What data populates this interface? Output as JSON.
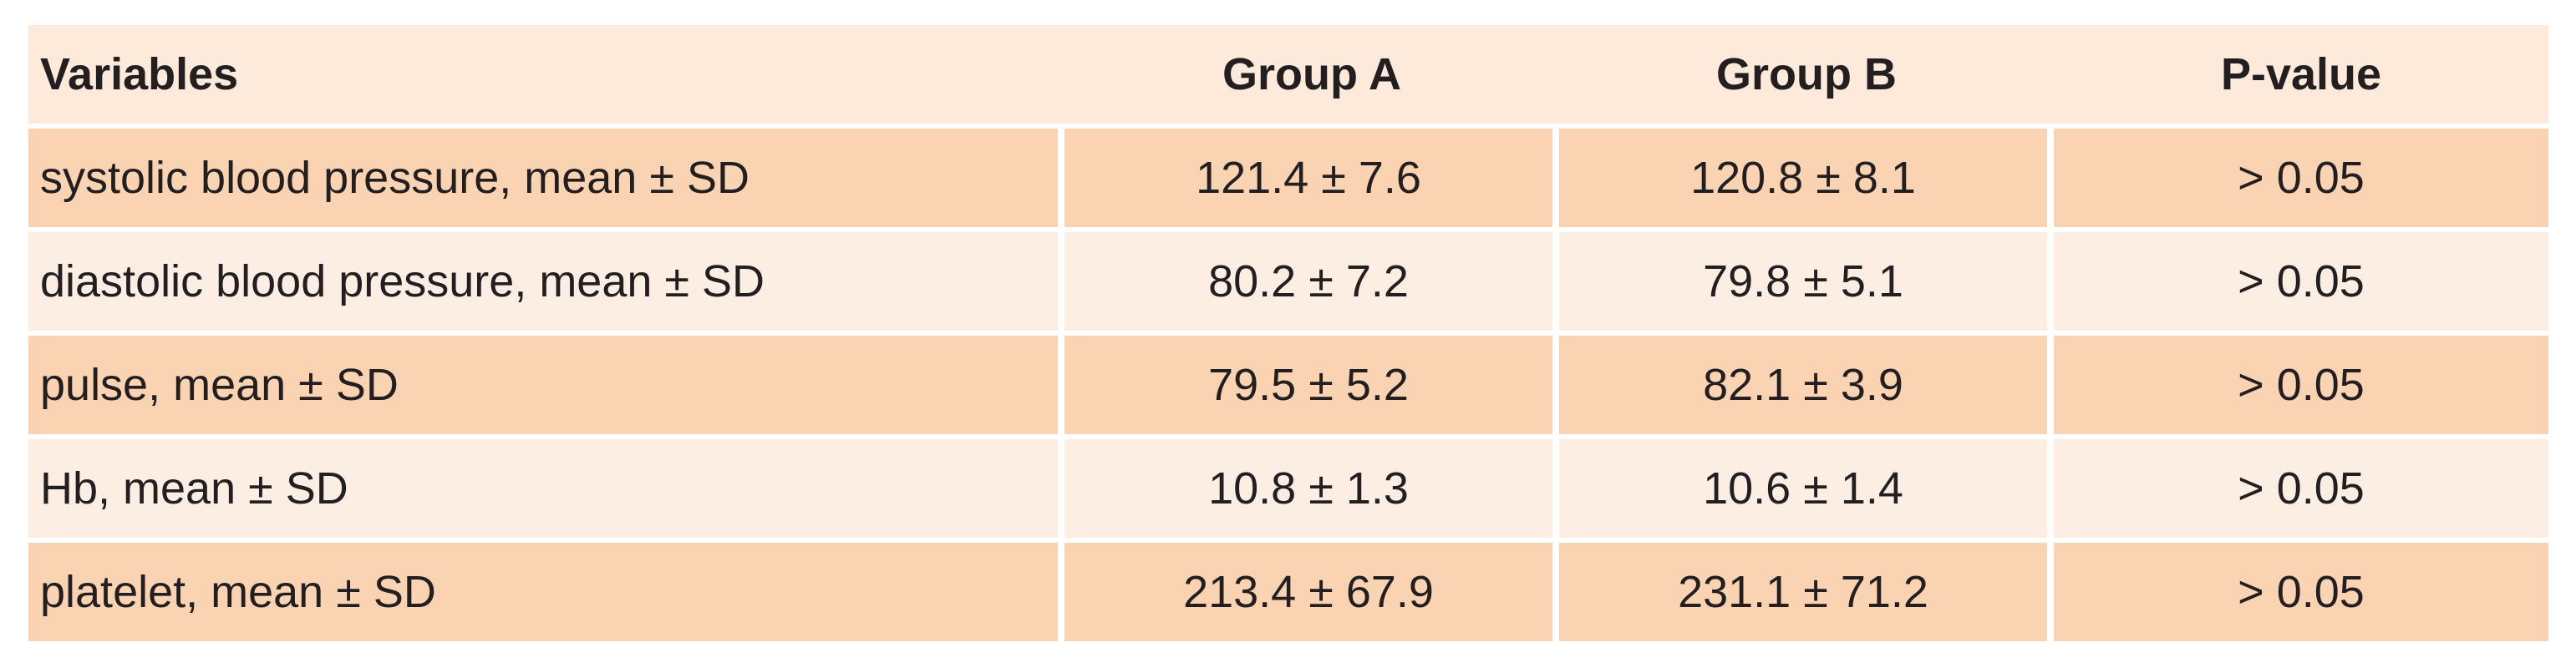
{
  "table": {
    "header": [
      "Variables",
      "Group A",
      "Group B",
      "P-value"
    ],
    "rows": [
      [
        "systolic blood pressure, mean ± SD",
        "121.4 ± 7.6",
        "120.8 ± 8.1",
        "> 0.05"
      ],
      [
        "diastolic blood pressure, mean ± SD",
        "80.2 ± 7.2",
        "79.8 ± 5.1",
        "> 0.05"
      ],
      [
        "pulse, mean ± SD",
        "79.5 ± 5.2",
        "82.1 ± 3.9",
        "> 0.05"
      ],
      [
        "Hb, mean ± SD",
        "10.8 ± 1.3",
        "10.6 ± 1.4",
        "> 0.05"
      ],
      [
        "platelet, mean ± SD",
        "213.4 ± 67.9",
        "231.1 ± 71.2",
        "> 0.05"
      ]
    ]
  }
}
